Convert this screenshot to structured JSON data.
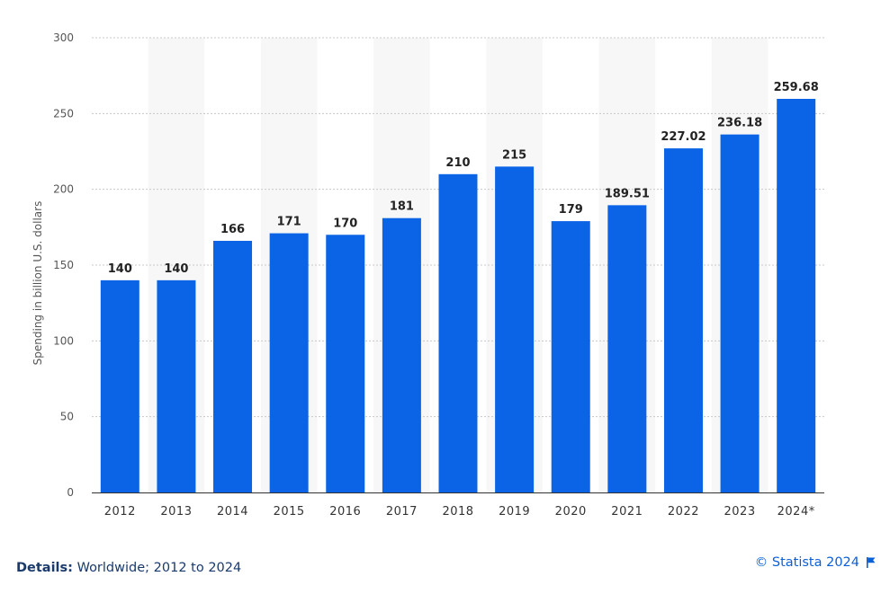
{
  "chart_data": {
    "type": "bar",
    "categories": [
      "2012",
      "2013",
      "2014",
      "2015",
      "2016",
      "2017",
      "2018",
      "2019",
      "2020",
      "2021",
      "2022",
      "2023",
      "2024*"
    ],
    "values": [
      140,
      140,
      166,
      171,
      170,
      181,
      210,
      215,
      179,
      189.51,
      227.02,
      236.18,
      259.68
    ],
    "data_labels": [
      "140",
      "140",
      "166",
      "171",
      "170",
      "181",
      "210",
      "215",
      "179",
      "189.51",
      "227.02",
      "236.18",
      "259.68"
    ],
    "title": "",
    "xlabel": "",
    "ylabel": "Spending in billion U.S. dollars",
    "ylim": [
      0,
      300
    ],
    "yticks": [
      "0",
      "50",
      "100",
      "150",
      "200",
      "250",
      "300"
    ],
    "grid": true,
    "bar_color": "#0b63e5",
    "band_color": "#f7f7f7"
  },
  "footer": {
    "details_label": "Details:",
    "details_text": "Worldwide; 2012 to 2024",
    "copyright": "© Statista 2024",
    "flag_icon": "flag-icon"
  }
}
